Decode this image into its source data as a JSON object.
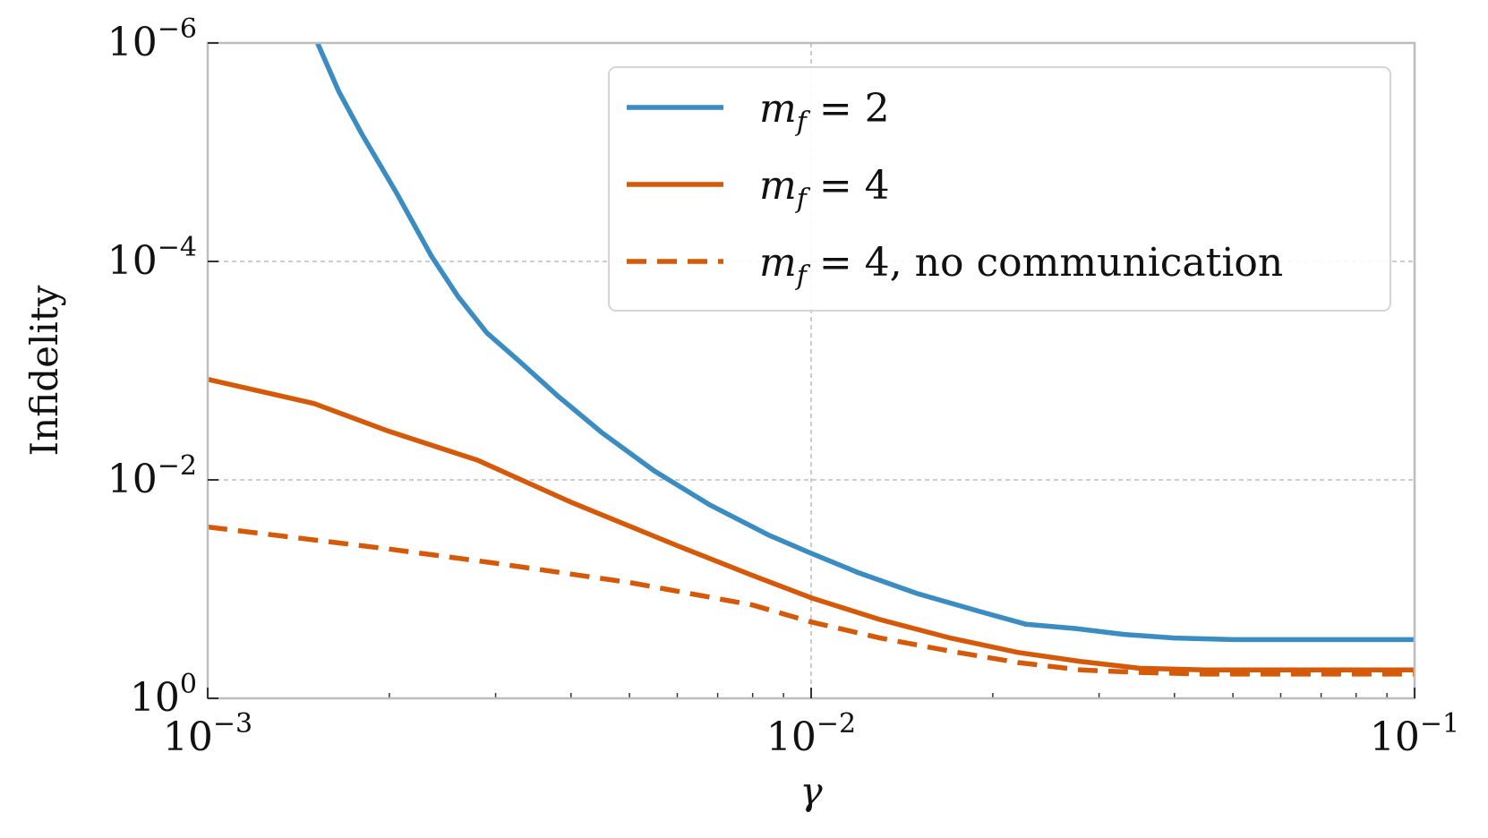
{
  "chart_data": {
    "type": "line",
    "xlabel": "γ",
    "ylabel": "Infidelity",
    "x_scale": "log",
    "y_scale": "log",
    "y_inverted": true,
    "xlim": [
      0.001,
      0.1
    ],
    "ylim": [
      1,
      1e-06
    ],
    "x_ticks": [
      {
        "value": 0.001,
        "base": "10",
        "exp": "−3"
      },
      {
        "value": 0.01,
        "base": "10",
        "exp": "−2"
      },
      {
        "value": 0.1,
        "base": "10",
        "exp": "−1"
      }
    ],
    "y_ticks": [
      {
        "value": 1e-06,
        "base": "10",
        "exp": "−6"
      },
      {
        "value": 0.0001,
        "base": "10",
        "exp": "−4"
      },
      {
        "value": 0.01,
        "base": "10",
        "exp": "−2"
      },
      {
        "value": 1,
        "base": "10",
        "exp": "0"
      }
    ],
    "grid": true,
    "legend_position": "top-right",
    "series": [
      {
        "legend_text": "m_f = 2",
        "legend_math_base": "m",
        "legend_math_sub": "f",
        "legend_math_rest": " = 2",
        "legend_suffix": "",
        "color": "#3a8cc1",
        "style": "solid",
        "x": [
          0.00152,
          0.00165,
          0.0018,
          0.00205,
          0.00235,
          0.0026,
          0.0029,
          0.0033,
          0.0038,
          0.0045,
          0.0055,
          0.0068,
          0.0085,
          0.01,
          0.012,
          0.015,
          0.019,
          0.0227,
          0.0275,
          0.033,
          0.04,
          0.05,
          0.06,
          0.08,
          0.1
        ],
        "y": [
          1e-06,
          2.8e-06,
          6.8e-06,
          2.3e-05,
          9e-05,
          0.00021,
          0.00045,
          0.00084,
          0.0017,
          0.0037,
          0.0083,
          0.017,
          0.032,
          0.047,
          0.071,
          0.11,
          0.16,
          0.21,
          0.23,
          0.26,
          0.28,
          0.29,
          0.29,
          0.29,
          0.29
        ]
      },
      {
        "legend_text": "m_f = 4",
        "legend_math_base": "m",
        "legend_math_sub": "f",
        "legend_math_rest": " = 4",
        "legend_suffix": "",
        "color": "#d45a0a",
        "style": "solid",
        "x": [
          0.001,
          0.0015,
          0.002,
          0.0028,
          0.004,
          0.006,
          0.008,
          0.01,
          0.013,
          0.017,
          0.022,
          0.028,
          0.035,
          0.045,
          0.06,
          0.08,
          0.1
        ],
        "y": [
          0.0012,
          0.002,
          0.0036,
          0.0066,
          0.016,
          0.04,
          0.075,
          0.12,
          0.19,
          0.28,
          0.38,
          0.46,
          0.53,
          0.55,
          0.55,
          0.55,
          0.55
        ]
      },
      {
        "legend_text": "m_f = 4, no communication",
        "legend_math_base": "m",
        "legend_math_sub": "f",
        "legend_math_rest": " = 4",
        "legend_suffix": ", no communication",
        "color": "#d45a0a",
        "style": "dashed",
        "x": [
          0.001,
          0.002,
          0.003,
          0.005,
          0.008,
          0.01,
          0.013,
          0.017,
          0.022,
          0.028,
          0.035,
          0.045,
          0.06,
          0.08,
          0.1
        ],
        "y": [
          0.027,
          0.043,
          0.058,
          0.087,
          0.14,
          0.2,
          0.28,
          0.37,
          0.47,
          0.55,
          0.58,
          0.6,
          0.6,
          0.6,
          0.6
        ]
      }
    ]
  }
}
